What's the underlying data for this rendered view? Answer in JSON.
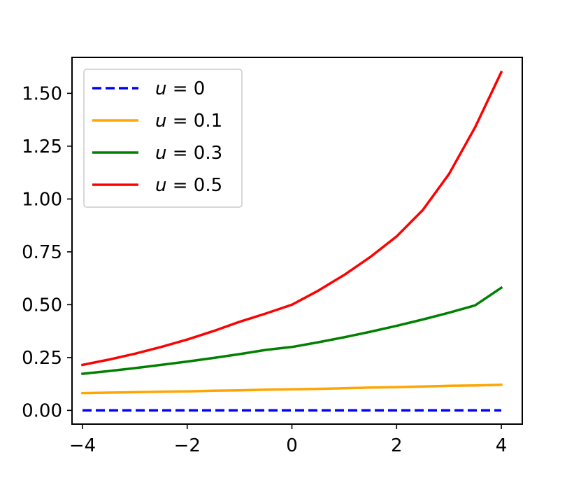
{
  "chart_data": {
    "type": "line",
    "title": "",
    "xlabel": "",
    "ylabel": "",
    "xlim": [
      -4.2,
      4.4
    ],
    "ylim": [
      -0.065,
      1.67
    ],
    "x_ticks": [
      -4,
      -2,
      0,
      2,
      4
    ],
    "x_tick_labels": [
      "−4",
      "−2",
      "0",
      "2",
      "4"
    ],
    "y_ticks": [
      0,
      0.25,
      0.5,
      0.75,
      1.0,
      1.25,
      1.5
    ],
    "y_tick_labels": [
      "0.00",
      "0.25",
      "0.50",
      "0.75",
      "1.00",
      "1.25",
      "1.50"
    ],
    "grid": false,
    "legend_position": "top-left",
    "x": [
      -4,
      -3.5,
      -3,
      -2.5,
      -2,
      -1.5,
      -1,
      -0.5,
      0,
      0.5,
      1,
      1.5,
      2,
      2.5,
      3,
      3.5,
      4
    ],
    "series": [
      {
        "name": "u = 0",
        "color": "#0000ff",
        "style": "dashed",
        "values": [
          0,
          0,
          0,
          0,
          0,
          0,
          0,
          0,
          0,
          0,
          0,
          0,
          0,
          0,
          0,
          0,
          0
        ]
      },
      {
        "name": "u = 0.1",
        "color": "#ffa500",
        "style": "solid",
        "values": [
          0.082,
          0.084,
          0.086,
          0.088,
          0.09,
          0.093,
          0.095,
          0.098,
          0.1,
          0.102,
          0.105,
          0.108,
          0.11,
          0.113,
          0.116,
          0.118,
          0.121
        ]
      },
      {
        "name": "u = 0.3",
        "color": "#008000",
        "style": "solid",
        "values": [
          0.173,
          0.186,
          0.2,
          0.215,
          0.231,
          0.248,
          0.266,
          0.286,
          0.3,
          0.322,
          0.346,
          0.372,
          0.4,
          0.43,
          0.462,
          0.497,
          0.58
        ]
      },
      {
        "name": "u = 0.5",
        "color": "#ff0000",
        "style": "solid",
        "values": [
          0.215,
          0.24,
          0.268,
          0.3,
          0.335,
          0.375,
          0.419,
          0.458,
          0.5,
          0.566,
          0.641,
          0.726,
          0.823,
          0.948,
          1.118,
          1.34,
          1.6
        ]
      }
    ]
  }
}
